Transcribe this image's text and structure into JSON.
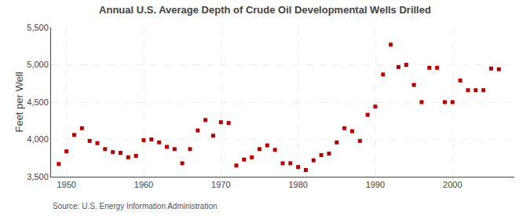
{
  "chart_data": {
    "type": "scatter",
    "title": "Annual U.S. Average Depth of Crude Oil Developmental Wells Drilled",
    "y_label": "Feet per Well",
    "annotations": [
      "Source: U.S. Energy Information Administration"
    ],
    "color": "#bb0000",
    "marker": "square",
    "grid": true,
    "xlim": [
      1948,
      2008
    ],
    "ylim": [
      3500,
      5500
    ],
    "xticks": [
      1950,
      1960,
      1970,
      1980,
      1990,
      2000
    ],
    "yticks": [
      {
        "value": 3500,
        "label": "3,500"
      },
      {
        "value": 4000,
        "label": "4,000"
      },
      {
        "value": 4500,
        "label": "4,500"
      },
      {
        "value": 5000,
        "label": "5,000"
      },
      {
        "value": 5500,
        "label": "5,500"
      }
    ],
    "x": [
      1949,
      1950,
      1951,
      1952,
      1953,
      1954,
      1955,
      1956,
      1957,
      1958,
      1959,
      1960,
      1961,
      1962,
      1963,
      1964,
      1965,
      1966,
      1967,
      1968,
      1969,
      1970,
      1971,
      1972,
      1973,
      1974,
      1975,
      1976,
      1977,
      1978,
      1979,
      1980,
      1981,
      1982,
      1983,
      1984,
      1985,
      1986,
      1987,
      1988,
      1989,
      1990,
      1991,
      1992,
      1993,
      1994,
      1995,
      1996,
      1997,
      1998,
      1999,
      2000,
      2001,
      2002,
      2003,
      2004,
      2005,
      2006
    ],
    "values": [
      3670,
      3840,
      4060,
      4150,
      3980,
      3950,
      3870,
      3830,
      3820,
      3760,
      3780,
      3990,
      4000,
      3960,
      3900,
      3870,
      3680,
      3870,
      4120,
      4260,
      4050,
      4230,
      4220,
      3650,
      3730,
      3760,
      3870,
      3920,
      3860,
      3680,
      3680,
      3630,
      3590,
      3720,
      3790,
      3810,
      3960,
      4150,
      4110,
      3980,
      4330,
      4440,
      4870,
      5270,
      4970,
      5000,
      4730,
      4500,
      4960,
      4960,
      4500,
      4500,
      4790,
      4660,
      4660,
      4660,
      4950,
      4940
    ]
  }
}
